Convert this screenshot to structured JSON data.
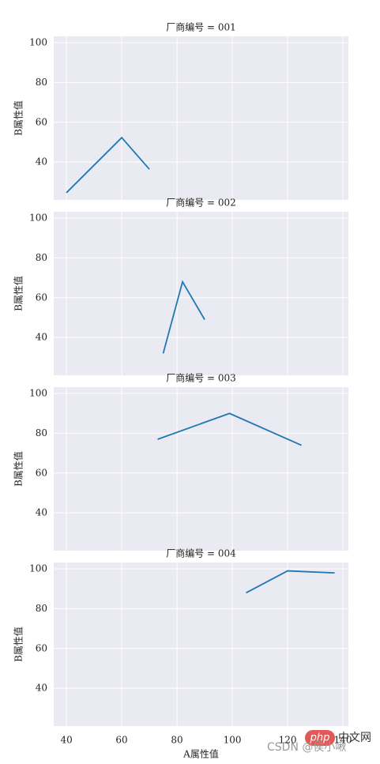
{
  "chart_data": [
    {
      "type": "line",
      "title": "厂商编号 = 001",
      "ylabel": "B属性值",
      "x": [
        40,
        60,
        70
      ],
      "values": [
        24.6,
        52.3,
        36.4
      ],
      "color": "#1f77b4",
      "xlim": [
        35.4,
        142
      ],
      "ylim": [
        21,
        103.2
      ],
      "xticks": [
        40,
        60,
        80,
        100,
        120,
        140
      ],
      "yticks": [
        40,
        60,
        80,
        100
      ],
      "grid": true
    },
    {
      "type": "line",
      "title": "厂商编号 = 002",
      "ylabel": "B属性值",
      "x": [
        75,
        82,
        90
      ],
      "values": [
        32,
        68,
        49
      ],
      "color": "#1f77b4",
      "xlim": [
        35.4,
        142
      ],
      "ylim": [
        21,
        103.2
      ],
      "xticks": [
        40,
        60,
        80,
        100,
        120,
        140
      ],
      "yticks": [
        40,
        60,
        80,
        100
      ],
      "grid": true
    },
    {
      "type": "line",
      "title": "厂商编号 = 003",
      "ylabel": "B属性值",
      "x": [
        73,
        99,
        125
      ],
      "values": [
        77,
        90,
        74
      ],
      "color": "#1f77b4",
      "xlim": [
        35.4,
        142
      ],
      "ylim": [
        21,
        103.2
      ],
      "xticks": [
        40,
        60,
        80,
        100,
        120,
        140
      ],
      "yticks": [
        40,
        60,
        80,
        100
      ],
      "grid": true
    },
    {
      "type": "line",
      "title": "厂商编号 = 004",
      "ylabel": "B属性值",
      "xlabel": "A属性值",
      "x": [
        105,
        120,
        137
      ],
      "values": [
        88,
        99,
        98
      ],
      "color": "#1f77b4",
      "xlim": [
        35.4,
        142
      ],
      "ylim": [
        21,
        103.2
      ],
      "xticks": [
        40,
        60,
        80,
        100,
        120,
        140
      ],
      "yticks": [
        40,
        60,
        80,
        100
      ],
      "grid": true
    }
  ],
  "watermark": {
    "logo": "php",
    "site": "中文网",
    "author": "CSDN @侯小啾"
  }
}
